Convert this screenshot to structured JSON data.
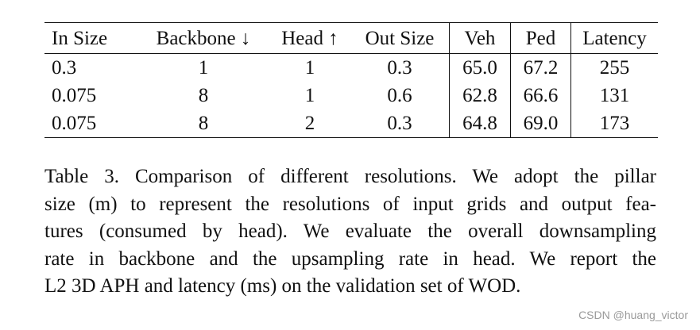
{
  "table": {
    "headers": [
      "In Size",
      "Backbone ↓",
      "Head ↑",
      "Out Size",
      "Veh",
      "Ped",
      "Latency"
    ],
    "rows": [
      [
        "0.3",
        "1",
        "1",
        "0.3",
        "65.0",
        "67.2",
        "255"
      ],
      [
        "0.075",
        "8",
        "1",
        "0.6",
        "62.8",
        "66.6",
        "131"
      ],
      [
        "0.075",
        "8",
        "2",
        "0.3",
        "64.8",
        "69.0",
        "173"
      ]
    ]
  },
  "caption": {
    "lines": [
      "Table 3. Comparison of different resolutions. We adopt the pillar",
      "size (m) to represent the resolutions of input grids and output fea-",
      "tures (consumed by head). We evaluate the overall downsampling",
      "rate in backbone and the upsampling rate in head. We report the",
      "L2 3D APH and latency (ms) on the validation set of WOD."
    ]
  },
  "watermark": "CSDN @huang_victor"
}
